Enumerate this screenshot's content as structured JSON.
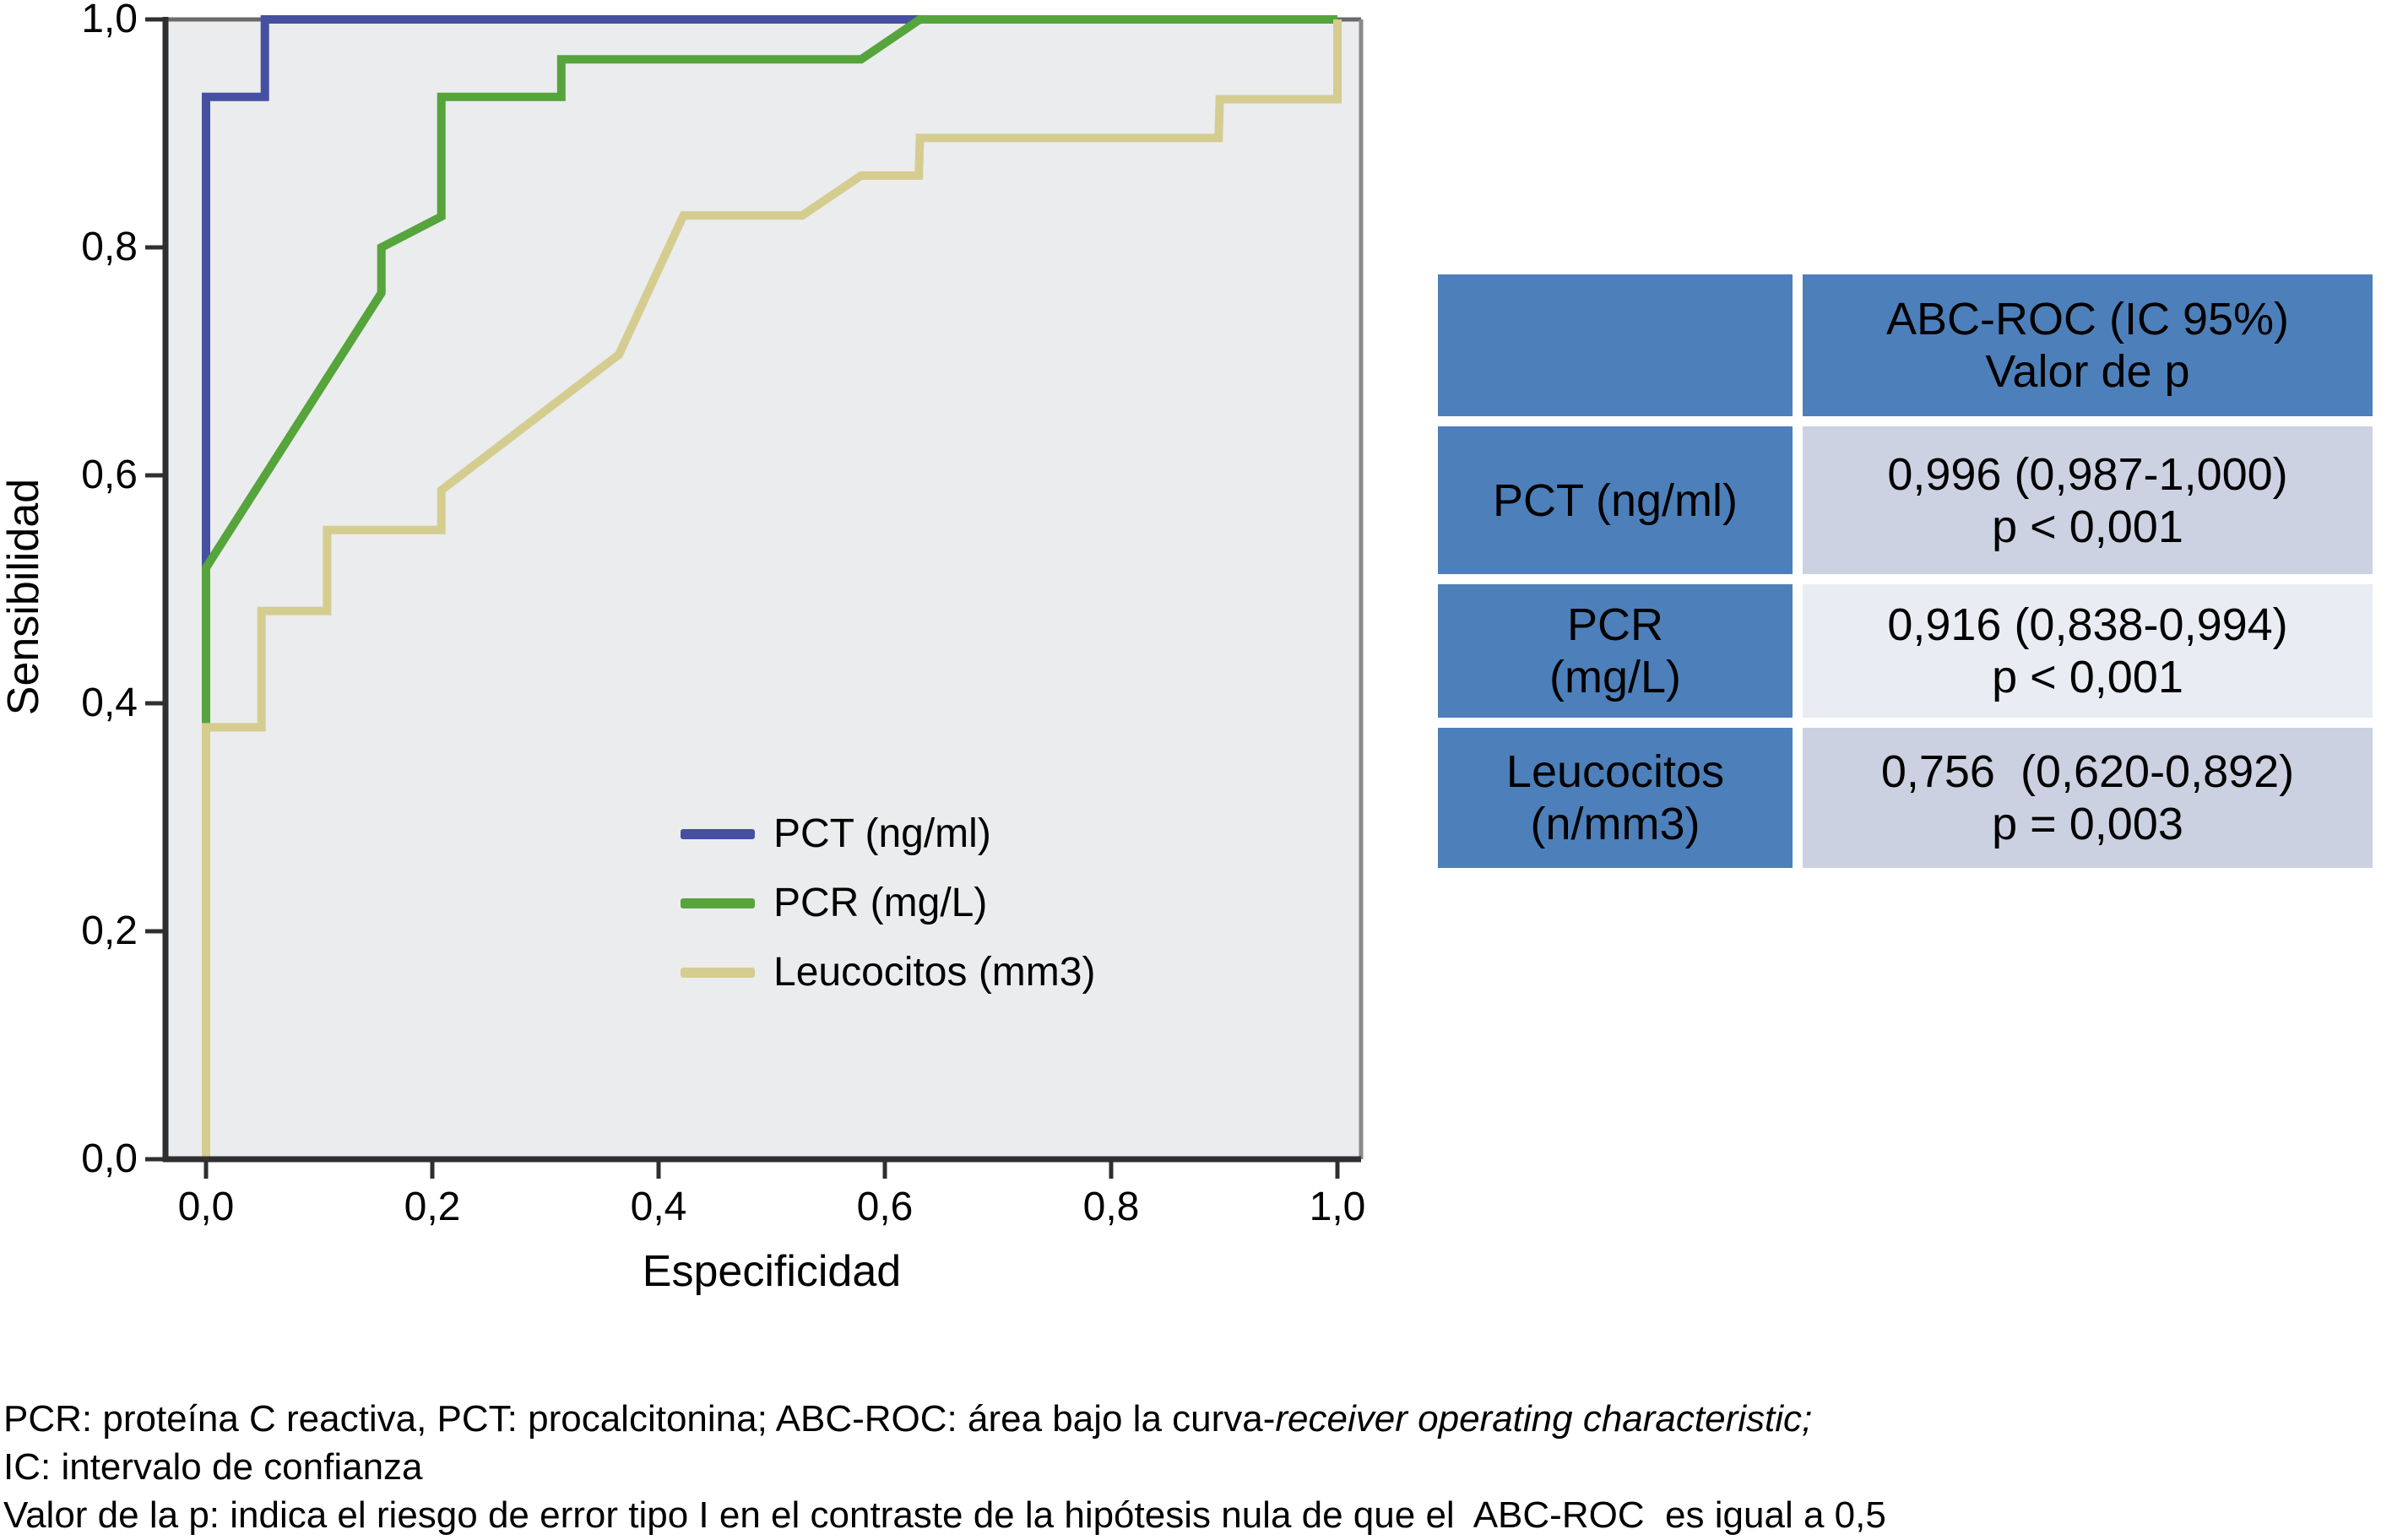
{
  "chart_data": {
    "type": "line",
    "subtype": "roc-step-curves",
    "title": "",
    "xlabel": "Especificidad",
    "ylabel": "Sensibilidad",
    "xlim": [
      0,
      1
    ],
    "ylim": [
      0,
      1
    ],
    "grid": false,
    "plot_background": "#ebeced",
    "legend_position": "inside-lower-right-of-center",
    "x_tick_labels": [
      "0,0",
      "0,2",
      "0,4",
      "0,6",
      "0,8",
      "1,0"
    ],
    "y_tick_labels": [
      "0,0",
      "0,2",
      "0,4",
      "0,6",
      "0,8",
      "1,0"
    ],
    "tick_values": [
      0,
      0.2,
      0.4,
      0.6,
      0.8,
      1.0
    ],
    "series": [
      {
        "name": "PCT (ng/ml)",
        "color": "#4550a2",
        "points": [
          [
            0,
            0
          ],
          [
            0,
            0.932
          ],
          [
            0.052,
            0.932
          ],
          [
            0.052,
            1.0
          ],
          [
            1,
            1
          ]
        ]
      },
      {
        "name": "PCR (mg/L)",
        "color": "#56a43c",
        "points": [
          [
            0,
            0
          ],
          [
            0,
            0.519
          ],
          [
            0.155,
            0.76
          ],
          [
            0.155,
            0.8
          ],
          [
            0.208,
            0.827
          ],
          [
            0.208,
            0.932
          ],
          [
            0.314,
            0.932
          ],
          [
            0.314,
            0.965
          ],
          [
            0.579,
            0.965
          ],
          [
            0.631,
            1.0
          ],
          [
            1,
            1
          ]
        ]
      },
      {
        "name": "Leucocitos (mm3)",
        "color": "#d5cd90",
        "points": [
          [
            0,
            0
          ],
          [
            0,
            0.379
          ],
          [
            0.049,
            0.379
          ],
          [
            0.049,
            0.481
          ],
          [
            0.107,
            0.481
          ],
          [
            0.107,
            0.552
          ],
          [
            0.208,
            0.552
          ],
          [
            0.208,
            0.587
          ],
          [
            0.365,
            0.706
          ],
          [
            0.422,
            0.828
          ],
          [
            0.527,
            0.828
          ],
          [
            0.579,
            0.863
          ],
          [
            0.63,
            0.863
          ],
          [
            0.631,
            0.896
          ],
          [
            0.895,
            0.896
          ],
          [
            0.896,
            0.93
          ],
          [
            1.0,
            0.93
          ],
          [
            1.0,
            1.0
          ]
        ]
      }
    ]
  },
  "table": {
    "colors": {
      "header_bg": "#4d80ba",
      "row1_value_bg": "#ccd2e2",
      "row2_value_bg": "#e9ecf3",
      "row3_value_bg": "#cbd1e0"
    },
    "header": {
      "col1": "",
      "col2_line1": "ABC-ROC (IC 95%)",
      "col2_line2": "Valor de p"
    },
    "rows": [
      {
        "label_lines": [
          "PCT (ng/ml)"
        ],
        "value_lines": [
          "0,996 (0,987-1,000)",
          "p < 0,001"
        ]
      },
      {
        "label_lines": [
          "PCR",
          "(mg/L)"
        ],
        "value_lines": [
          "0,916 (0,838-0,994)",
          "p < 0,001"
        ]
      },
      {
        "label_lines": [
          "Leucocitos",
          "(n/mm3)"
        ],
        "value_lines": [
          "0,756  (0,620-0,892)",
          "p = 0,003"
        ]
      }
    ]
  },
  "footnotes": {
    "line1_plain": "PCR: proteína C reactiva, PCT: procalcitonina; ABC-ROC: área bajo la curva-",
    "line1_italic": "receiver operating characteristic;",
    "line2": "IC: intervalo de confianza",
    "line3": "Valor de la p: indica el riesgo de error tipo I en el contraste de la hipótesis nula de que el  ABC-ROC  es igual a 0,5"
  }
}
